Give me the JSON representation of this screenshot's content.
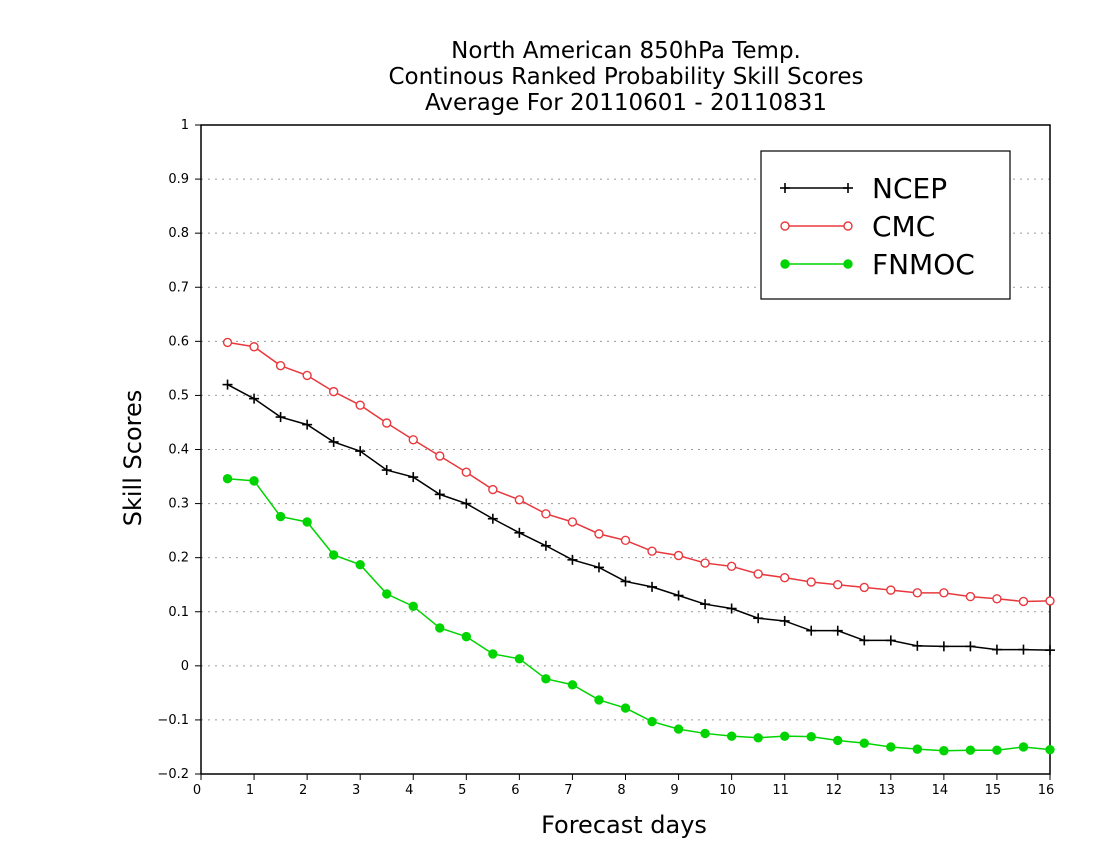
{
  "chart_data": {
    "type": "line",
    "title": [
      "North American 850hPa Temp.",
      "Continous Ranked Probability Skill Scores",
      "Average For 20110601 - 20110831"
    ],
    "xlabel": "Forecast days",
    "ylabel": "Skill Scores",
    "xlim": [
      0,
      16
    ],
    "ylim": [
      -0.2,
      1
    ],
    "xticks": [
      0,
      1,
      2,
      3,
      4,
      5,
      6,
      7,
      8,
      9,
      10,
      11,
      12,
      13,
      14,
      15,
      16
    ],
    "xtick_labels": [
      "0",
      "1",
      "2",
      "3",
      "4",
      "5",
      "6",
      "7",
      "8",
      "9",
      "10",
      "11",
      "12",
      "13",
      "14",
      "15",
      "16"
    ],
    "yticks": [
      -0.2,
      -0.1,
      0,
      0.1,
      0.2,
      0.3,
      0.4,
      0.5,
      0.6,
      0.7,
      0.8,
      0.9,
      1
    ],
    "ytick_labels": [
      "−0.2",
      "−0.1",
      "0",
      "0.1",
      "0.2",
      "0.3",
      "0.4",
      "0.5",
      "0.6",
      "0.7",
      "0.8",
      "0.9",
      "1"
    ],
    "grid": "horizontal-dotted",
    "legend_position": "top-right",
    "x": [
      0.5,
      1,
      1.5,
      2,
      2.5,
      3,
      3.5,
      4,
      4.5,
      5,
      5.5,
      6,
      6.5,
      7,
      7.5,
      8,
      8.5,
      9,
      9.5,
      10,
      10.5,
      11,
      11.5,
      12,
      12.5,
      13,
      13.5,
      14,
      14.5,
      15,
      15.5,
      16
    ],
    "series": [
      {
        "name": "NCEP",
        "color": "#000000",
        "marker": "plus",
        "values": [
          0.52,
          0.494,
          0.46,
          0.446,
          0.414,
          0.397,
          0.362,
          0.349,
          0.317,
          0.3,
          0.272,
          0.246,
          0.222,
          0.196,
          0.182,
          0.156,
          0.146,
          0.13,
          0.114,
          0.106,
          0.088,
          0.083,
          0.065,
          0.065,
          0.047,
          0.047,
          0.037,
          0.036,
          0.036,
          0.03,
          0.03,
          0.029
        ]
      },
      {
        "name": "CMC",
        "color": "#e8383d",
        "marker": "open-circle",
        "values": [
          0.598,
          0.59,
          0.555,
          0.537,
          0.507,
          0.482,
          0.449,
          0.418,
          0.388,
          0.358,
          0.326,
          0.307,
          0.281,
          0.266,
          0.244,
          0.232,
          0.212,
          0.204,
          0.19,
          0.184,
          0.17,
          0.163,
          0.155,
          0.15,
          0.145,
          0.14,
          0.135,
          0.135,
          0.128,
          0.124,
          0.119,
          0.12
        ]
      },
      {
        "name": "FNMOC",
        "color": "#00d400",
        "marker": "filled-circle",
        "values": [
          0.346,
          0.342,
          0.276,
          0.266,
          0.205,
          0.187,
          0.133,
          0.11,
          0.07,
          0.054,
          0.022,
          0.013,
          -0.024,
          -0.035,
          -0.063,
          -0.078,
          -0.103,
          -0.117,
          -0.125,
          -0.13,
          -0.133,
          -0.13,
          -0.131,
          -0.138,
          -0.143,
          -0.15,
          -0.154,
          -0.157,
          -0.156,
          -0.156,
          -0.15,
          -0.155
        ]
      }
    ]
  }
}
